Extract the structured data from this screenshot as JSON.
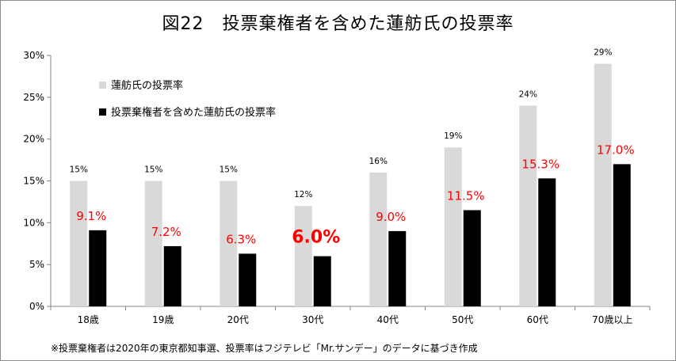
{
  "title": "図22　投票棄権者を含めた蓮舫氏の投票率",
  "note": "※投票棄権者は2020年の東京都知事選、投票率はフジテレビ「Mr.サンデー」のデータに基づき作成",
  "chart_data": {
    "type": "bar",
    "title": "図22　投票棄権者を含めた蓮舫氏の投票率",
    "categories": [
      "18歳",
      "19歳",
      "20代",
      "30代",
      "40代",
      "50代",
      "60代",
      "70歳以上"
    ],
    "series": [
      {
        "name": "蓮舫氏の投票率",
        "color": "#d9d9d9",
        "values": [
          15,
          15,
          15,
          12,
          16,
          19,
          24,
          29
        ],
        "labels": [
          "15%",
          "15%",
          "15%",
          "12%",
          "16%",
          "19%",
          "24%",
          "29%"
        ]
      },
      {
        "name": "投票棄権者を含めた蓮舫氏の投票率",
        "color": "#000000",
        "values": [
          9.1,
          7.2,
          6.3,
          6.0,
          9.0,
          11.5,
          15.3,
          17.0
        ],
        "labels": [
          "9.1%",
          "7.2%",
          "6.3%",
          "6.0%",
          "9.0%",
          "11.5%",
          "15.3%",
          "17.0%"
        ],
        "label_color": "#ff0000"
      }
    ],
    "yticks": [
      "0%",
      "5%",
      "10%",
      "15%",
      "20%",
      "25%",
      "30%"
    ],
    "ylim": [
      0,
      30
    ],
    "highlight_index": 3,
    "legend_position": "top-left",
    "grid": false
  }
}
